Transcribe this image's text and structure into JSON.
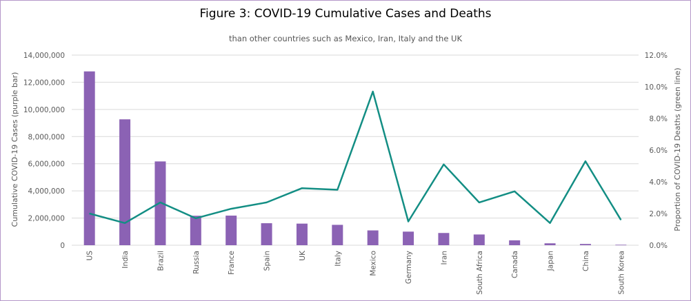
{
  "chart_data": {
    "type": "bar",
    "title": "Figure 3: COVID-19 Cumulative Cases and Deaths",
    "subtitle": "than other countries such as Mexico, Iran, Italy and the UK",
    "categories": [
      "US",
      "India",
      "Brazil",
      "Russia",
      "France",
      "Spain",
      "UK",
      "Italy",
      "Mexico",
      "Germany",
      "Iran",
      "South Africa",
      "Canada",
      "Japan",
      "China",
      "South Korea"
    ],
    "series": [
      {
        "type": "bar",
        "axis": "left",
        "values": [
          12800000,
          9270000,
          6170000,
          2170000,
          2180000,
          1620000,
          1590000,
          1500000,
          1090000,
          1000000,
          900000,
          790000,
          360000,
          140000,
          92000,
          34000
        ]
      },
      {
        "type": "line",
        "axis": "right",
        "values": [
          2.0,
          1.4,
          2.7,
          1.7,
          2.3,
          2.7,
          3.6,
          3.5,
          9.7,
          1.5,
          5.1,
          2.7,
          3.4,
          1.4,
          5.3,
          1.6
        ]
      }
    ],
    "ylabel": "Cumulative COVID-19 Cases (purple bar)",
    "ylabel_right": "Proportion of COVID-19 Deaths (green line)",
    "ylim": [
      0,
      14000000
    ],
    "ylim_right": [
      0,
      12
    ],
    "yticks": [
      "0",
      "2,000,000",
      "4,000,000",
      "6,000,000",
      "8,000,000",
      "10,000,000",
      "12,000,000",
      "14,000,000"
    ],
    "yticks_right": [
      "0.0%",
      "2.0%",
      "4.0%",
      "6.0%",
      "8.0%",
      "10.0%",
      "12.0%"
    ],
    "grid": true,
    "colors": {
      "bar": "#8b62b4",
      "line": "#138e84",
      "grid": "#d9d9d9",
      "border": "#b497c9"
    }
  }
}
